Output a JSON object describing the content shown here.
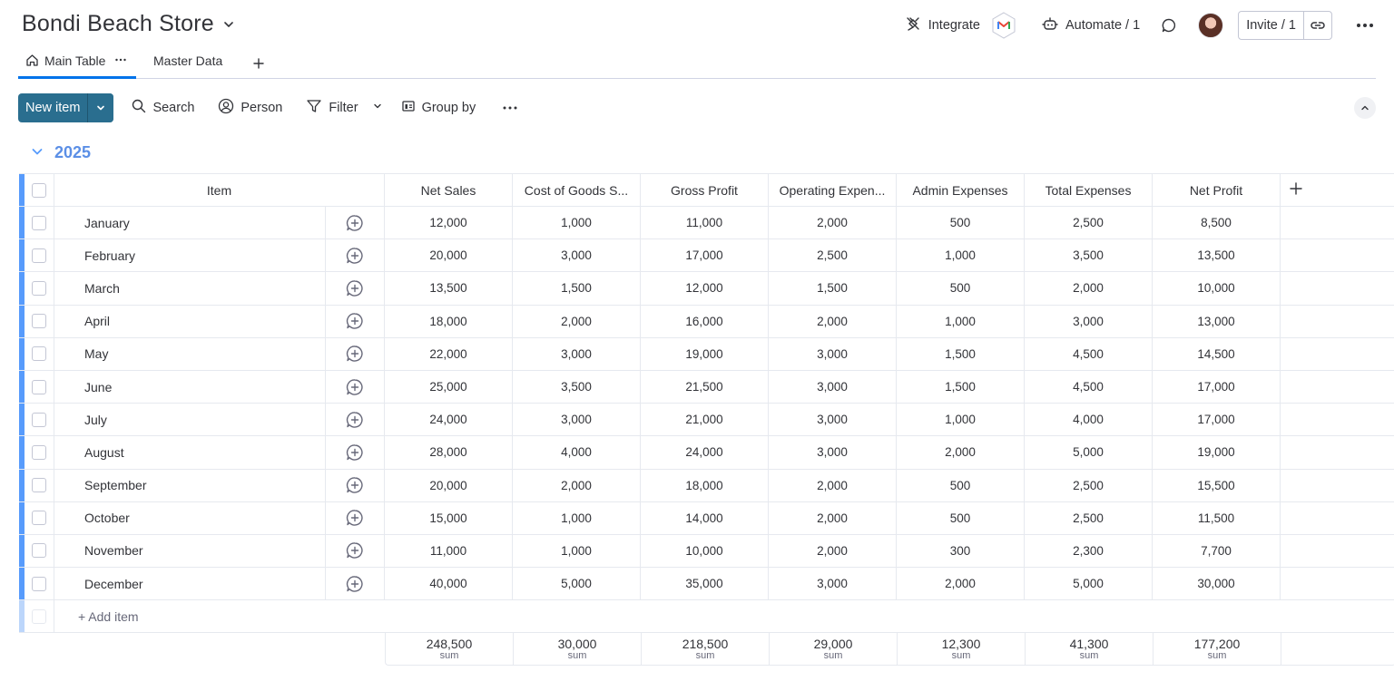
{
  "board": {
    "title": "Bondi Beach Store"
  },
  "top_actions": {
    "integrate": "Integrate",
    "automate": "Automate / 1",
    "invite": "Invite / 1"
  },
  "tabs": [
    {
      "label": "Main Table"
    },
    {
      "label": "Master Data"
    }
  ],
  "toolbar": {
    "new_item": "New item",
    "search": "Search",
    "person": "Person",
    "filter": "Filter",
    "group_by": "Group by"
  },
  "group": {
    "title": "2025",
    "color": "#579bfc"
  },
  "table": {
    "columns": [
      "Item",
      "Net Sales",
      "Cost of Goods S...",
      "Gross Profit",
      "Operating Expen...",
      "Admin Expenses",
      "Total Expenses",
      "Net Profit"
    ],
    "rows": [
      {
        "name": "January",
        "values": [
          "12,000",
          "1,000",
          "11,000",
          "2,000",
          "500",
          "2,500",
          "8,500"
        ]
      },
      {
        "name": "February",
        "values": [
          "20,000",
          "3,000",
          "17,000",
          "2,500",
          "1,000",
          "3,500",
          "13,500"
        ]
      },
      {
        "name": "March",
        "values": [
          "13,500",
          "1,500",
          "12,000",
          "1,500",
          "500",
          "2,000",
          "10,000"
        ]
      },
      {
        "name": "April",
        "values": [
          "18,000",
          "2,000",
          "16,000",
          "2,000",
          "1,000",
          "3,000",
          "13,000"
        ]
      },
      {
        "name": "May",
        "values": [
          "22,000",
          "3,000",
          "19,000",
          "3,000",
          "1,500",
          "4,500",
          "14,500"
        ]
      },
      {
        "name": "June",
        "values": [
          "25,000",
          "3,500",
          "21,500",
          "3,000",
          "1,500",
          "4,500",
          "17,000"
        ]
      },
      {
        "name": "July",
        "values": [
          "24,000",
          "3,000",
          "21,000",
          "3,000",
          "1,000",
          "4,000",
          "17,000"
        ]
      },
      {
        "name": "August",
        "values": [
          "28,000",
          "4,000",
          "24,000",
          "3,000",
          "2,000",
          "5,000",
          "19,000"
        ]
      },
      {
        "name": "September",
        "values": [
          "20,000",
          "2,000",
          "18,000",
          "2,000",
          "500",
          "2,500",
          "15,500"
        ]
      },
      {
        "name": "October",
        "values": [
          "15,000",
          "1,000",
          "14,000",
          "2,000",
          "500",
          "2,500",
          "11,500"
        ]
      },
      {
        "name": "November",
        "values": [
          "11,000",
          "1,000",
          "10,000",
          "2,000",
          "300",
          "2,300",
          "7,700"
        ]
      },
      {
        "name": "December",
        "values": [
          "40,000",
          "5,000",
          "35,000",
          "3,000",
          "2,000",
          "5,000",
          "30,000"
        ]
      }
    ],
    "add_item": "+ Add item",
    "summary": [
      {
        "value": "248,500",
        "label": "sum"
      },
      {
        "value": "30,000",
        "label": "sum"
      },
      {
        "value": "218,500",
        "label": "sum"
      },
      {
        "value": "29,000",
        "label": "sum"
      },
      {
        "value": "12,300",
        "label": "sum"
      },
      {
        "value": "41,300",
        "label": "sum"
      },
      {
        "value": "177,200",
        "label": "sum"
      }
    ]
  }
}
